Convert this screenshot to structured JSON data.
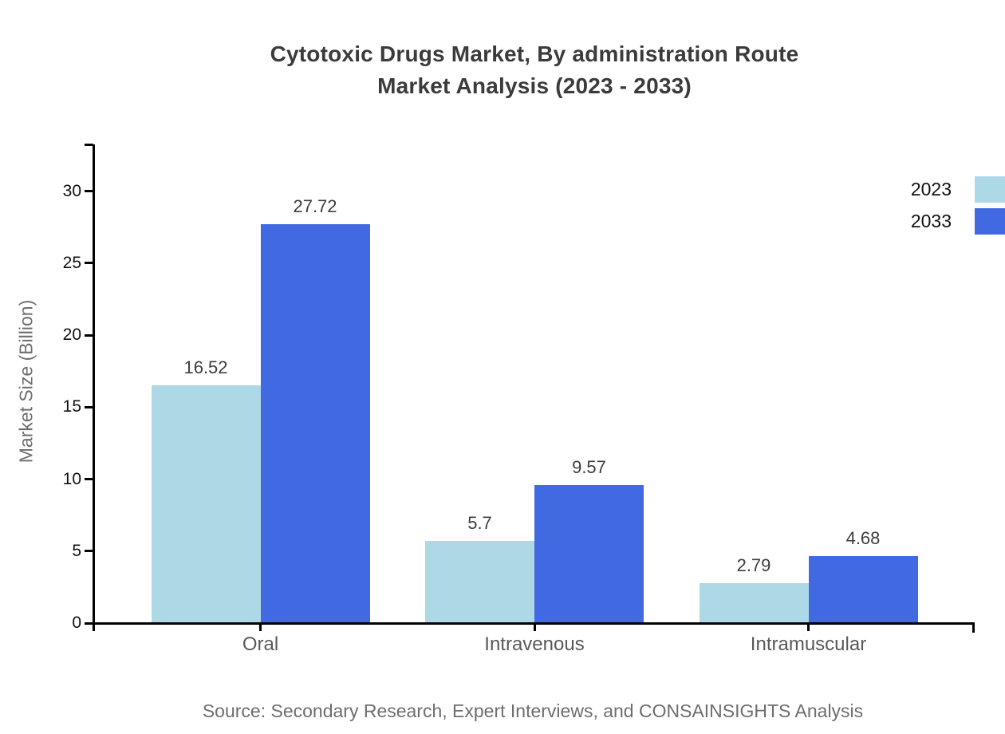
{
  "chart_data": {
    "type": "bar",
    "title": "Cytotoxic Drugs Market, By administration Route\nMarket Analysis (2023 - 2033)",
    "categories": [
      "Oral",
      "Intravenous",
      "Intramuscular"
    ],
    "series": [
      {
        "name": "2023",
        "color": "#ADD8E6",
        "values": [
          16.52,
          5.7,
          2.79
        ]
      },
      {
        "name": "2033",
        "color": "#4169E1",
        "values": [
          27.72,
          9.57,
          4.68
        ]
      }
    ],
    "xlabel": "",
    "ylabel": "Market Size (Billion)",
    "yticks": [
      0,
      5,
      10,
      15,
      20,
      25,
      30
    ],
    "ylim": [
      0,
      33.3
    ],
    "grid": false,
    "legend_position": "top-right",
    "value_labels_shown": true,
    "source": "Source: Secondary Research, Expert Interviews, and CONSAINSIGHTS Analysis",
    "colors": {
      "title": "#3b3b3b",
      "tick_label": "#111111",
      "category_label": "#595959",
      "axis_label": "#6e6e6e",
      "value_label": "#3d3d3d",
      "axis": "#000000",
      "legend_label": "#111111",
      "background": "#ffffff"
    }
  }
}
